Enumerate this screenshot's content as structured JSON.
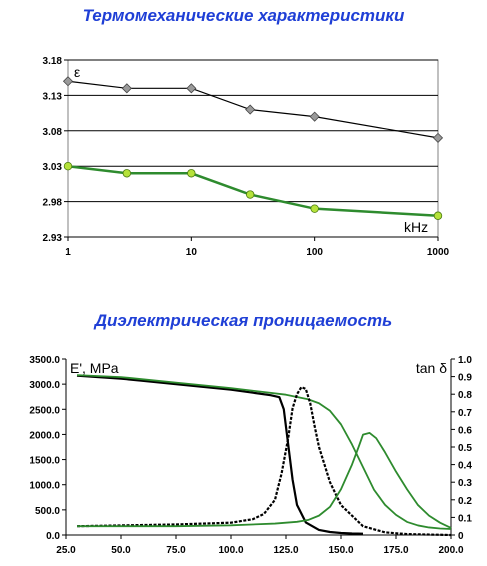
{
  "titles": {
    "top": "Термомеханические характеристики",
    "bottom": "Диэлектрическая проницаемость"
  },
  "colors": {
    "black_series": "#000000",
    "green_series": "#2e8b2e",
    "title": "#1f3fd6"
  },
  "chart_data": [
    {
      "type": "line",
      "x_scale": "log",
      "x": [
        1,
        3,
        10,
        30,
        100,
        1000
      ],
      "xticks": [
        "1",
        "10",
        "100",
        "1000"
      ],
      "xlim": [
        1,
        1000
      ],
      "ylim": [
        2.93,
        3.18
      ],
      "yticks": [
        "2.93",
        "2.98",
        "3.03",
        "3.08",
        "3.13",
        "3.18"
      ],
      "ylabel": "ε",
      "xlabel": "kHz",
      "grid": true,
      "series": [
        {
          "color": "#000000",
          "marker": "diamond",
          "values": [
            3.15,
            3.14,
            3.14,
            3.11,
            3.1,
            3.07
          ]
        },
        {
          "color": "#2e8b2e",
          "marker": "circle",
          "values": [
            3.03,
            3.02,
            3.02,
            2.99,
            2.97,
            2.96
          ]
        }
      ]
    },
    {
      "type": "line",
      "xlim": [
        25,
        200
      ],
      "xticks": [
        "25.0",
        "50.0",
        "75.0",
        "100.0",
        "125.0",
        "150.0",
        "175.0",
        "200.0"
      ],
      "ylim": [
        0,
        3500
      ],
      "yticks": [
        "0.0",
        "500.0",
        "1000.0",
        "1500.0",
        "2000.0",
        "2500.0",
        "3000.0",
        "3500.0"
      ],
      "y2lim": [
        0,
        1
      ],
      "y2ticks": [
        "0",
        "0.1",
        "0.2",
        "0.3",
        "0.4",
        "0.5",
        "0.6",
        "0.7",
        "0.8",
        "0.9",
        "1.0"
      ],
      "ylabel": "E', MPa",
      "y2label": "tan δ",
      "grid": false,
      "series": [
        {
          "axis": "left",
          "color": "#000000",
          "x": [
            30,
            50,
            75,
            100,
            110,
            118,
            122,
            124,
            126,
            128,
            130,
            134,
            140,
            145,
            150,
            155,
            160
          ],
          "values": [
            3170,
            3110,
            3000,
            2890,
            2830,
            2780,
            2740,
            2500,
            1800,
            1100,
            600,
            250,
            100,
            60,
            40,
            30,
            25
          ]
        },
        {
          "axis": "left",
          "color": "#2e8b2e",
          "x": [
            30,
            50,
            75,
            100,
            125,
            135,
            140,
            145,
            150,
            155,
            160,
            165,
            170,
            175,
            180,
            185,
            190,
            195,
            200
          ],
          "values": [
            3180,
            3140,
            3030,
            2920,
            2790,
            2700,
            2620,
            2470,
            2200,
            1800,
            1350,
            900,
            600,
            400,
            260,
            190,
            150,
            130,
            120
          ]
        },
        {
          "axis": "right",
          "color": "#000000",
          "x": [
            30,
            75,
            100,
            110,
            115,
            120,
            123,
            126,
            128,
            130,
            132,
            134,
            136,
            138,
            140,
            145,
            150,
            160,
            170,
            180,
            200
          ],
          "values": [
            0.05,
            0.06,
            0.07,
            0.09,
            0.12,
            0.2,
            0.35,
            0.55,
            0.72,
            0.8,
            0.84,
            0.83,
            0.75,
            0.62,
            0.5,
            0.3,
            0.17,
            0.05,
            0.015,
            0.005,
            0.0
          ]
        },
        {
          "axis": "right",
          "color": "#2e8b2e",
          "x": [
            30,
            75,
            100,
            120,
            130,
            135,
            140,
            145,
            150,
            155,
            158,
            160,
            163,
            166,
            170,
            175,
            180,
            185,
            190,
            195,
            200
          ],
          "values": [
            0.05,
            0.05,
            0.055,
            0.065,
            0.075,
            0.085,
            0.11,
            0.16,
            0.26,
            0.4,
            0.5,
            0.57,
            0.58,
            0.55,
            0.47,
            0.36,
            0.26,
            0.17,
            0.11,
            0.07,
            0.04
          ]
        }
      ]
    }
  ]
}
